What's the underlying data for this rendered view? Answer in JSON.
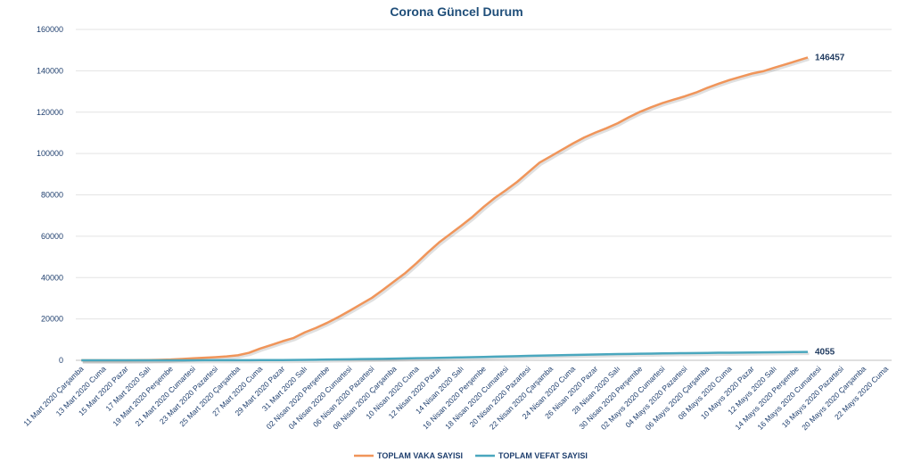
{
  "chart_data": {
    "type": "line",
    "title": "Corona Güncel Durum",
    "categories": [
      "11 Mart 2020 Çarşamba",
      null,
      "13 Mart 2020 Cuma",
      null,
      "15 Mart 2020 Pazar",
      null,
      "17 Mart 2020 Salı",
      null,
      "19 Mart 2020 Perşembe",
      null,
      "21 Mart 2020 Cumartesi",
      null,
      "23 Mart 2020 Pazartesi",
      null,
      "25 Mart 2020 Çarşamba",
      null,
      "27 Mart 2020 Cuma",
      null,
      "29 Mart 2020 Pazar",
      null,
      "31 Mart 2020 Salı",
      null,
      "02 Nisan 2020 Perşembe",
      null,
      "04 Nisan 2020 Cumartesi",
      null,
      "06 Nisan 2020 Pazartesi",
      null,
      "08 Nisan 2020 Çarşamba",
      null,
      "10 Nisan 2020 Cuma",
      null,
      "12 Nisan 2020 Pazar",
      null,
      "14 Nisan 2020 Salı",
      null,
      "16 Nisan 2020 Perşembe",
      null,
      "18 Nisan 2020 Cumartesi",
      null,
      "20 Nisan 2020 Pazartesi",
      null,
      "22 Nisan 2020 Çarşamba",
      null,
      "24 Nisan 2020 Cuma",
      null,
      "26 Nisan 2020 Pazar",
      null,
      "28 Nisan 2020 Salı",
      null,
      "30 Nisan 2020 Perşembe",
      null,
      "02 Mayıs 2020 Cumartesi",
      null,
      "04 Mayıs 2020 Pazartesi",
      null,
      "06 Mayıs 2020 Çarşamba",
      null,
      "08 Mayıs 2020 Cuma",
      null,
      "10 Mayıs 2020 Pazar",
      null,
      "12 Mayıs 2020 Salı",
      null,
      "14 Mayıs 2020 Perşembe",
      null,
      "16 Mayıs 2020 Cumartesi",
      null,
      "18 Mayıs 2020 Pazartesi",
      null,
      "20 Mayıs 2020 Çarşamba",
      null,
      "22 Mayıs 2020 Cuma"
    ],
    "series": [
      {
        "name": "TOPLAM VAKA SAYISI",
        "color": "#f0955a",
        "values": [
          1,
          1,
          5,
          6,
          18,
          47,
          98,
          191,
          359,
          670,
          947,
          1236,
          1529,
          1872,
          2433,
          3629,
          5698,
          7402,
          9217,
          10827,
          13531,
          15679,
          18135,
          20921,
          23934,
          27069,
          30217,
          34109,
          38226,
          42282,
          47029,
          52167,
          56956,
          61049,
          65111,
          69392,
          74193,
          78546,
          82329,
          86306,
          90980,
          95591,
          98674,
          101790,
          104912,
          107773,
          110130,
          112261,
          114653,
          117589,
          120204,
          122392,
          124375,
          126045,
          127659,
          129491,
          131744,
          133721,
          135569,
          137115,
          138657,
          139771,
          141475,
          143114,
          144749,
          146457,
          null,
          null,
          null,
          null,
          null,
          null,
          null
        ]
      },
      {
        "name": "TOPLAM VEFAT SAYISI",
        "color": "#4aa7be",
        "values": [
          0,
          0,
          0,
          0,
          0,
          0,
          1,
          2,
          3,
          4,
          21,
          30,
          37,
          44,
          59,
          75,
          92,
          108,
          131,
          168,
          214,
          277,
          356,
          425,
          501,
          574,
          649,
          725,
          812,
          908,
          1006,
          1101,
          1198,
          1296,
          1403,
          1518,
          1643,
          1769,
          1890,
          2017,
          2140,
          2259,
          2376,
          2491,
          2600,
          2706,
          2805,
          2900,
          2992,
          3081,
          3174,
          3258,
          3336,
          3397,
          3461,
          3520,
          3584,
          3641,
          3689,
          3739,
          3786,
          3841,
          3894,
          3952,
          4007,
          4055,
          null,
          null,
          null,
          null,
          null,
          null,
          null
        ]
      }
    ],
    "ylim": [
      0,
      160000
    ],
    "yticks": [
      0,
      20000,
      40000,
      60000,
      80000,
      100000,
      120000,
      140000,
      160000
    ],
    "grid": true,
    "legend": "bottom"
  }
}
